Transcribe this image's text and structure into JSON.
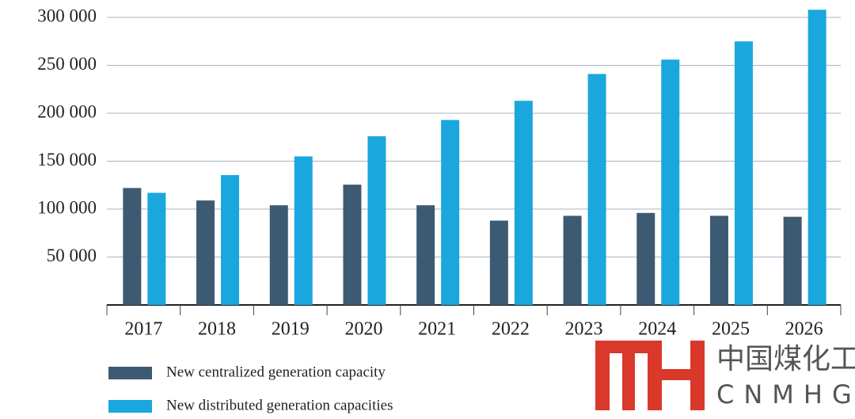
{
  "chart_data": {
    "type": "bar",
    "categories": [
      "2017",
      "2018",
      "2019",
      "2020",
      "2021",
      "2022",
      "2023",
      "2024",
      "2025",
      "2026"
    ],
    "series": [
      {
        "name": "New centralized generation capacity",
        "color": "#3d5a73",
        "values": [
          122000,
          109000,
          104000,
          125500,
          104000,
          88000,
          93000,
          96000,
          93000,
          92000
        ]
      },
      {
        "name": "New distributed generation capacities",
        "color": "#1aa7de",
        "values": [
          117000,
          135500,
          155000,
          176000,
          193000,
          213000,
          241000,
          256000,
          275000,
          308000
        ]
      }
    ],
    "ylim": [
      0,
      310000
    ],
    "yticks": [
      {
        "value": 50000,
        "label": "50 000"
      },
      {
        "value": 100000,
        "label": "100 000"
      },
      {
        "value": 150000,
        "label": "150 000"
      },
      {
        "value": 200000,
        "label": "200 000"
      },
      {
        "value": 250000,
        "label": "250 000"
      },
      {
        "value": 300000,
        "label": "300 000"
      }
    ],
    "grid": true
  },
  "watermark": {
    "text": "中国煤化工",
    "subtext": "CNMHG"
  }
}
